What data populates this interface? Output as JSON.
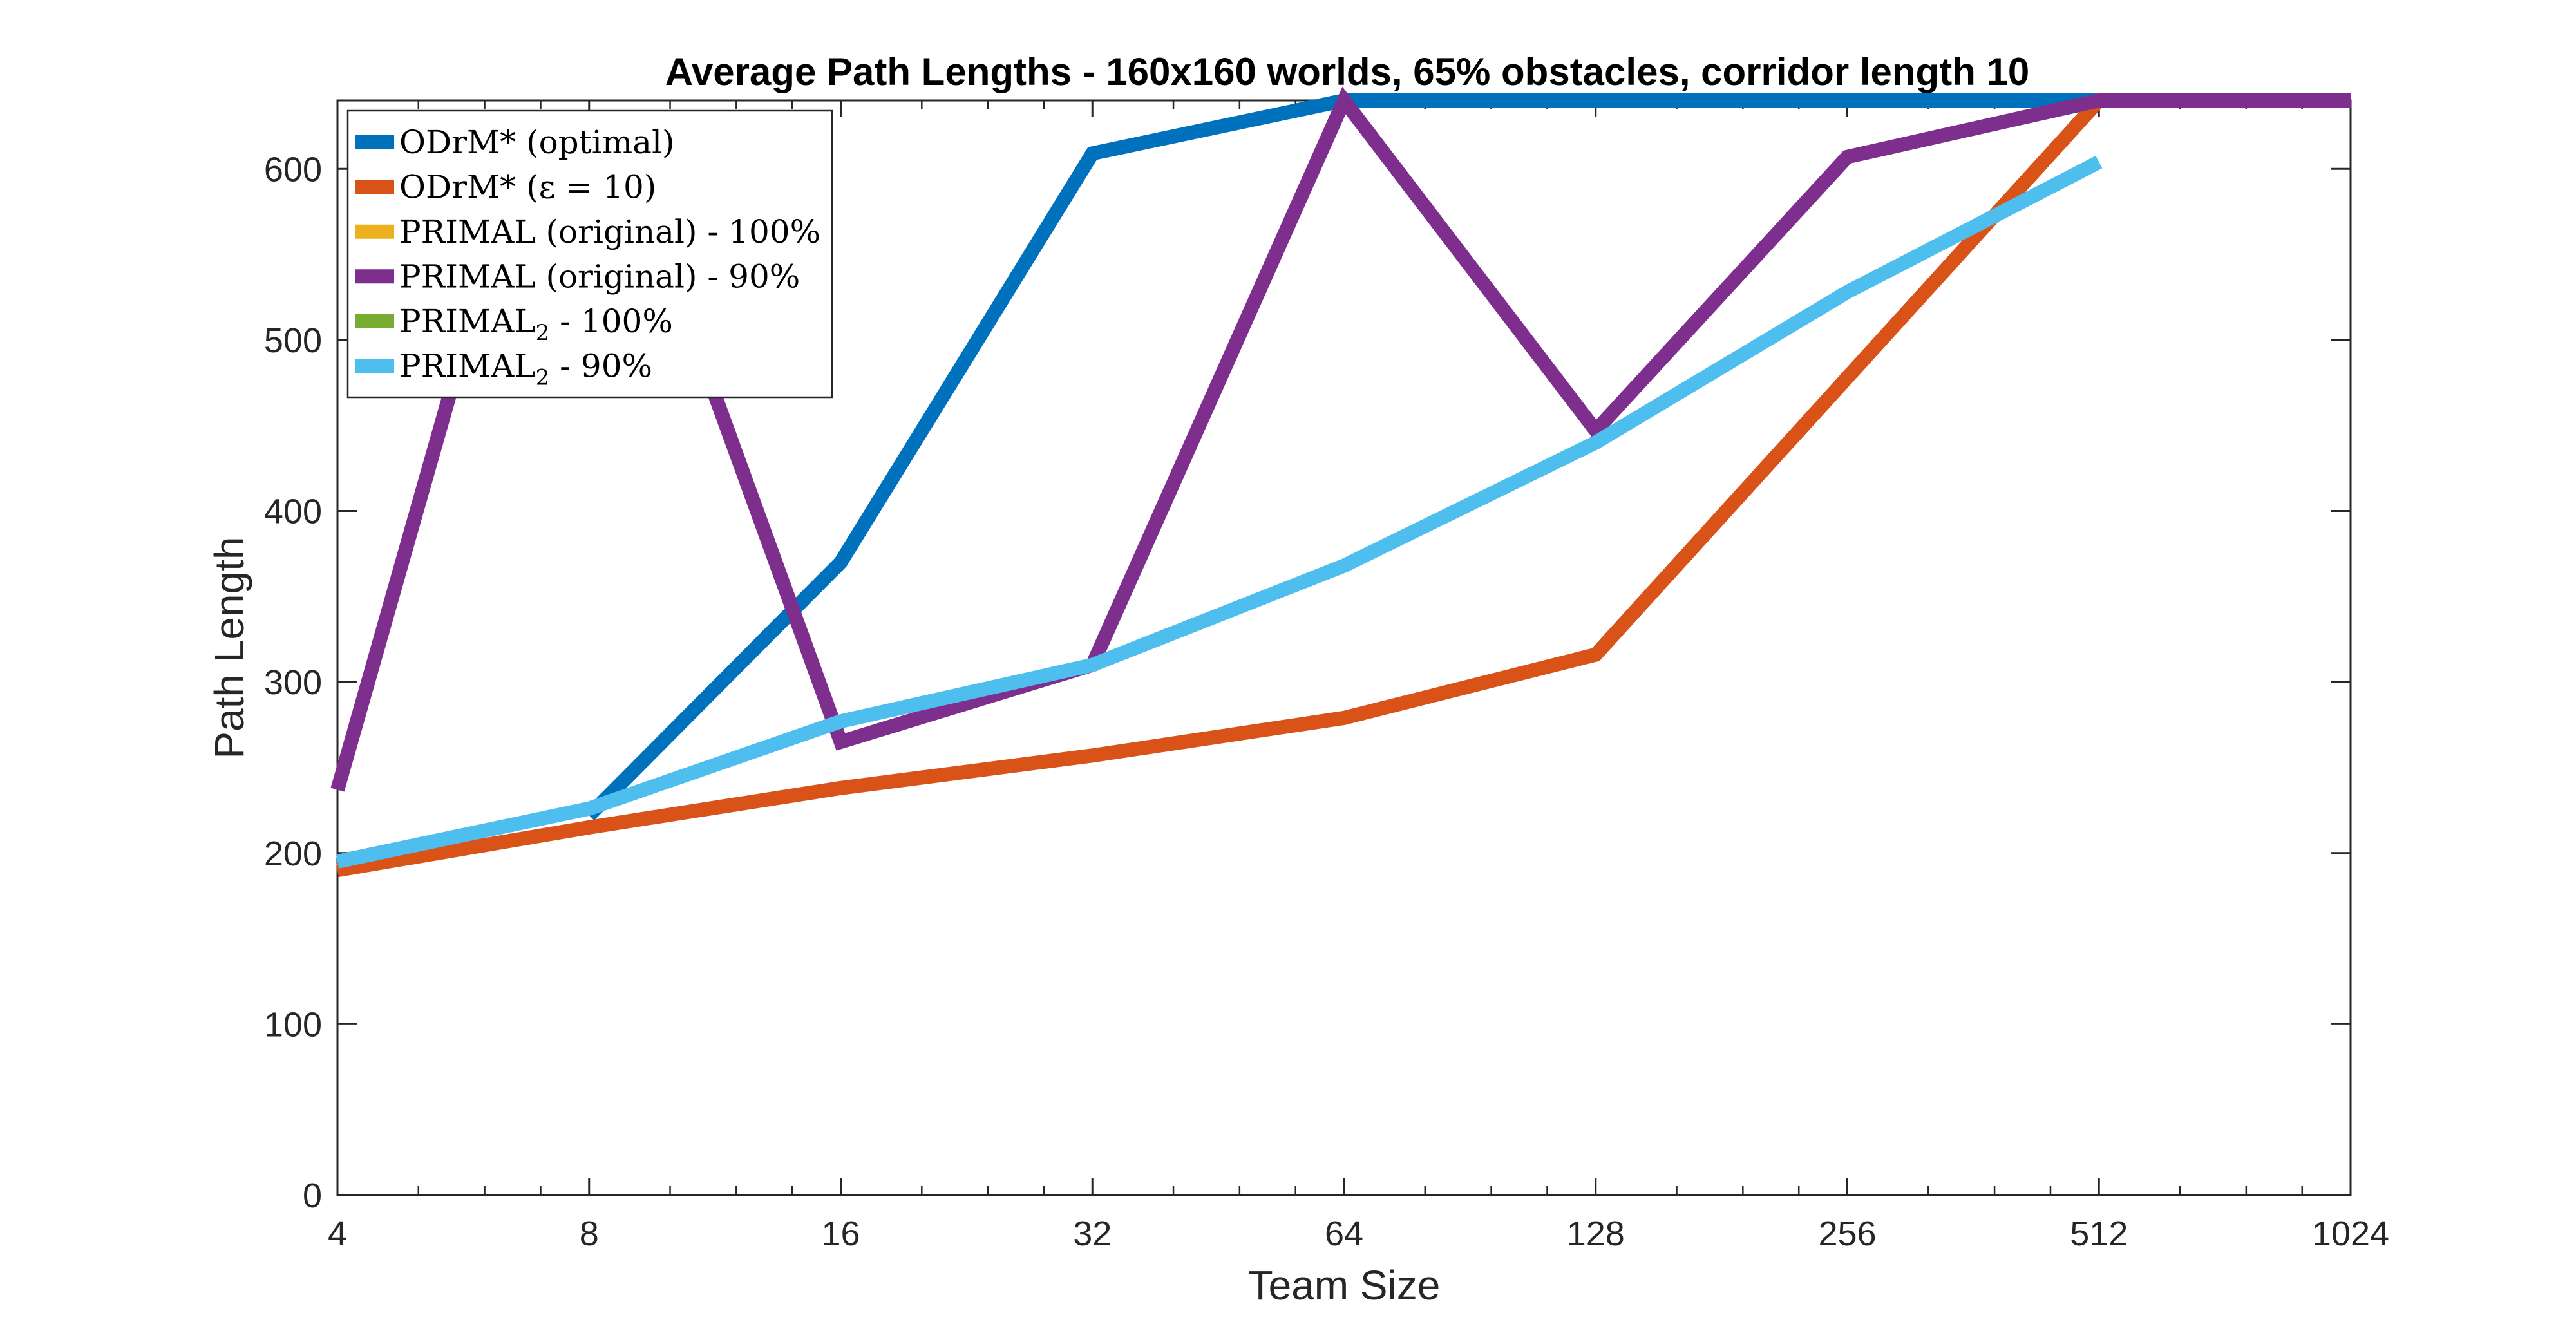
{
  "chart_data": {
    "type": "line",
    "title": "Average Path Lengths - 160x160 worlds, 65% obstacles, corridor length 10",
    "xlabel": "Team Size",
    "ylabel": "Path Length",
    "xscale": "log2",
    "x": [
      4,
      8,
      16,
      32,
      64,
      128,
      256,
      512,
      1024
    ],
    "xticks": [
      "4",
      "8",
      "16",
      "32",
      "64",
      "128",
      "256",
      "512",
      "1024"
    ],
    "yticks": [
      "0",
      "100",
      "200",
      "300",
      "400",
      "500",
      "600"
    ],
    "xlim": [
      4,
      1024
    ],
    "ylim": [
      0,
      640
    ],
    "grid": false,
    "legend_position": "top-left",
    "series": [
      {
        "name": "ODrM* (optimal)",
        "label_main": "ODrM* (optimal)",
        "label_sub": "",
        "label_tail": "",
        "color": "#0072BD",
        "points": [
          [
            8,
            222
          ],
          [
            16,
            370
          ],
          [
            32,
            609
          ],
          [
            64,
            640
          ],
          [
            128,
            640
          ],
          [
            256,
            640
          ],
          [
            512,
            640
          ],
          [
            1024,
            640
          ]
        ]
      },
      {
        "name": "ODrM* (ε = 10)",
        "label_main": "ODrM* (ε = 10)",
        "label_sub": "",
        "label_tail": "",
        "color": "#D95319",
        "points": [
          [
            4,
            190
          ],
          [
            8,
            215
          ],
          [
            16,
            238
          ],
          [
            32,
            257
          ],
          [
            64,
            279
          ],
          [
            128,
            316
          ],
          [
            256,
            478
          ],
          [
            512,
            640
          ],
          [
            1024,
            640
          ]
        ]
      },
      {
        "name": "PRIMAL (original) - 100%",
        "label_main": "PRIMAL (original) - 100%",
        "label_sub": "",
        "label_tail": "",
        "color": "#EDB120",
        "points": []
      },
      {
        "name": "PRIMAL (original) - 90%",
        "label_main": "PRIMAL (original) - 90%",
        "label_sub": "",
        "label_tail": "",
        "color": "#7E2F8E",
        "points": [
          [
            4,
            237
          ],
          [
            6,
            540
          ],
          [
            10,
            540
          ],
          [
            16,
            265
          ],
          [
            32,
            310
          ],
          [
            64,
            640
          ],
          [
            128,
            447
          ],
          [
            256,
            607
          ],
          [
            512,
            640
          ],
          [
            1024,
            640
          ]
        ]
      },
      {
        "name": "PRIMAL2 - 100%",
        "label_main": "PRIMAL",
        "label_sub": "2",
        "label_tail": " - 100%",
        "color": "#77AC30",
        "points": []
      },
      {
        "name": "PRIMAL2 - 90%",
        "label_main": "PRIMAL",
        "label_sub": "2",
        "label_tail": " - 90%",
        "color": "#4DBEEE",
        "points": [
          [
            4,
            195
          ],
          [
            8,
            226
          ],
          [
            16,
            277
          ],
          [
            32,
            310
          ],
          [
            64,
            368
          ],
          [
            128,
            440
          ],
          [
            256,
            528
          ],
          [
            512,
            604
          ]
        ]
      }
    ]
  }
}
